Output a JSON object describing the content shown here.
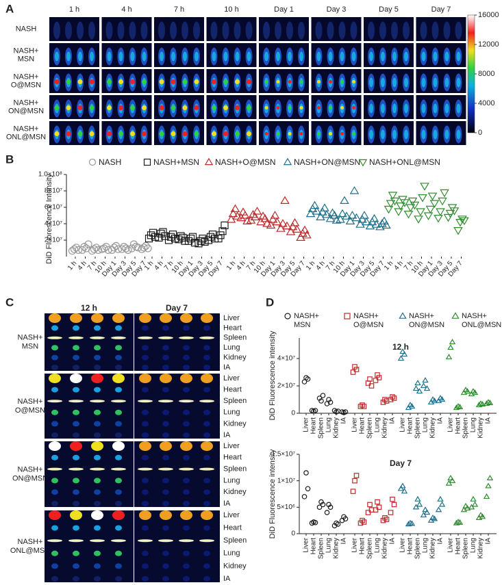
{
  "panel_a": {
    "label": "A",
    "columns": [
      "1 h",
      "4 h",
      "7 h",
      "10 h",
      "Day 1",
      "Day 3",
      "Day 5",
      "Day 7"
    ],
    "rows": [
      [
        "NASH"
      ],
      [
        "NASH+",
        "MSN"
      ],
      [
        "NASH+",
        "O@MSN"
      ],
      [
        "NASH+",
        "ON@MSN"
      ],
      [
        "NASH+",
        "ONL@MSN"
      ]
    ],
    "colorbar": {
      "lim": [
        0,
        16000
      ],
      "ticks": [
        0,
        4000,
        8000,
        12000,
        16000
      ]
    }
  },
  "panel_b": {
    "label": "B"
  },
  "panel_c": {
    "label": "C",
    "columns": [
      "12 h",
      "Day 7"
    ],
    "organs": [
      "Liver",
      "Heart",
      "Spleen",
      "Lung",
      "Kidney",
      "IA"
    ],
    "groups": [
      [
        "NASH+",
        "MSN"
      ],
      [
        "NASH+",
        "O@MSN"
      ],
      [
        "NASH+",
        "ON@MSN"
      ],
      [
        "NASH+",
        "ONL@MSN"
      ]
    ]
  },
  "panel_d": {
    "label": "D"
  },
  "chart_data": [
    {
      "type": "scatter",
      "ylabel": "DiD Fluorescence Intensity",
      "categories": [
        "1 h",
        "4 h",
        "7 h",
        "10 h",
        "Day 1",
        "Day 3",
        "Day 5",
        "Day 7"
      ],
      "ylim": [
        0,
        100000000.0
      ],
      "yticks": [
        {
          "value": 20000000.0,
          "label": "2×10⁷"
        },
        {
          "value": 40000000.0,
          "label": "4×10⁷"
        },
        {
          "value": 60000000.0,
          "label": "6×10⁷"
        },
        {
          "value": 80000000.0,
          "label": "8×10⁷"
        },
        {
          "value": 100000000.0,
          "label": "1.0×10⁸"
        }
      ],
      "series": [
        {
          "name": "NASH",
          "color": "#9a9a9a",
          "marker": "circle",
          "values": [
            [
              7000000.0,
              9000000.0,
              11000000.0,
              8000000.0
            ],
            [
              8000000.0,
              12000000.0,
              10000000.0,
              15000000.0
            ],
            [
              7000000.0,
              9000000.0,
              11000000.0,
              8000000.0
            ],
            [
              9000000.0,
              10000000.0,
              12000000.0,
              8000000.0
            ],
            [
              8000000.0,
              11000000.0,
              13000000.0,
              9000000.0
            ],
            [
              9000000.0,
              12000000.0,
              10000000.0,
              8000000.0
            ],
            [
              10000000.0,
              15000000.0,
              12000000.0,
              11000000.0
            ],
            [
              9000000.0,
              11000000.0,
              13000000.0,
              10000000.0
            ]
          ]
        },
        {
          "name": "NASH+MSN",
          "color": "#1a1a1a",
          "marker": "square",
          "values": [
            [
              22000000.0,
              26000000.0,
              29000000.0,
              24000000.0
            ],
            [
              23000000.0,
              28000000.0,
              30000000.0,
              25000000.0
            ],
            [
              20000000.0,
              24000000.0,
              27000000.0,
              22000000.0
            ],
            [
              21000000.0,
              25000000.0,
              23000000.0,
              19000000.0
            ],
            [
              19000000.0,
              22000000.0,
              24000000.0,
              17000000.0
            ],
            [
              16000000.0,
              19000000.0,
              22000000.0,
              18000000.0
            ],
            [
              20000000.0,
              24000000.0,
              27000000.0,
              22000000.0
            ],
            [
              22000000.0,
              26000000.0,
              31000000.0,
              38000000.0
            ]
          ]
        },
        {
          "name": "NASH+O@MSN",
          "color": "#c0282a",
          "marker": "triangle",
          "values": [
            [
              45000000.0,
              52000000.0,
              58000000.0,
              49000000.0
            ],
            [
              47000000.0,
              54000000.0,
              50000000.0,
              43000000.0
            ],
            [
              44000000.0,
              51000000.0,
              48000000.0,
              55000000.0
            ],
            [
              42000000.0,
              49000000.0,
              46000000.0,
              40000000.0
            ],
            [
              38000000.0,
              45000000.0,
              50000000.0,
              42000000.0
            ],
            [
              34000000.0,
              40000000.0,
              68000000.0,
              37000000.0
            ],
            [
              30000000.0,
              36000000.0,
              41000000.0,
              33000000.0
            ],
            [
              23000000.0,
              28000000.0,
              32000000.0,
              26000000.0
            ]
          ]
        },
        {
          "name": "NASH+ON@MSN",
          "color": "#1f6f8b",
          "marker": "triangle",
          "values": [
            [
              52000000.0,
              58000000.0,
              62000000.0,
              55000000.0
            ],
            [
              48000000.0,
              54000000.0,
              59000000.0,
              51000000.0
            ],
            [
              46000000.0,
              53000000.0,
              50000000.0,
              44000000.0
            ],
            [
              45000000.0,
              52000000.0,
              68000000.0,
              49000000.0
            ],
            [
              43000000.0,
              50000000.0,
              80000000.0,
              47000000.0
            ],
            [
              39000000.0,
              45000000.0,
              50000000.0,
              42000000.0
            ],
            [
              37000000.0,
              42000000.0,
              46000000.0,
              39000000.0
            ],
            [
              36000000.0,
              40000000.0,
              43000000.0,
              38000000.0
            ]
          ]
        },
        {
          "name": "NASH+ONL@MSN",
          "color": "#2e8b2e",
          "marker": "triangle-down",
          "values": [
            [
              58000000.0,
              65000000.0,
              75000000.0,
              68000000.0
            ],
            [
              55000000.0,
              62000000.0,
              70000000.0,
              66000000.0
            ],
            [
              52000000.0,
              60000000.0,
              68000000.0,
              63000000.0
            ],
            [
              46000000.0,
              55000000.0,
              72000000.0,
              86000000.0
            ],
            [
              50000000.0,
              58000000.0,
              74000000.0,
              65000000.0
            ],
            [
              47000000.0,
              55000000.0,
              68000000.0,
              78000000.0
            ],
            [
              48000000.0,
              53000000.0,
              60000000.0,
              56000000.0
            ],
            [
              32000000.0,
              42000000.0,
              46000000.0,
              44000000.0
            ]
          ]
        }
      ]
    },
    {
      "type": "scatter",
      "title": "12 h",
      "ylabel": "DiD Fluorescence intensity",
      "categories": [
        "Liver",
        "Heart",
        "Spleen",
        "Lung",
        "Kidney",
        "IA"
      ],
      "ylim": [
        0,
        55000000.0
      ],
      "yticks": [
        0,
        {
          "value": 20000000.0,
          "label": "2×10⁷"
        },
        {
          "value": 40000000.0,
          "label": "4×10⁷"
        }
      ],
      "series": [
        {
          "name": "NASH+ MSN",
          "color": "#1a1a1a",
          "marker": "circle",
          "values": [
            [
              23000000.0,
              26000000.0,
              25000000.0
            ],
            [
              2000000.0,
              1500000.0,
              2000000.0
            ],
            [
              11000000.0,
              9000000.0,
              13000000.0
            ],
            [
              7000000.0,
              10000000.0,
              8000000.0
            ],
            [
              2000000.0,
              1000000.0,
              1500000.0
            ],
            [
              1000000.0,
              500000.0,
              1000000.0
            ]
          ]
        },
        {
          "name": "NASH+ O@MSN",
          "color": "#c0282a",
          "marker": "square",
          "values": [
            [
              30000000.0,
              34000000.0,
              32000000.0
            ],
            [
              5000000.0,
              6000000.0,
              5000000.0
            ],
            [
              22000000.0,
              25000000.0,
              20000000.0
            ],
            [
              24000000.0,
              28000000.0,
              26000000.0
            ],
            [
              8000000.0,
              10000000.0,
              9000000.0
            ],
            [
              10000000.0,
              12000000.0,
              11000000.0
            ]
          ]
        },
        {
          "name": "NASH+ ON@MSN",
          "color": "#1f6f8b",
          "marker": "triangle",
          "values": [
            [
              40000000.0,
              45000000.0,
              43000000.0
            ],
            [
              4000000.0,
              6000000.0,
              5000000.0
            ],
            [
              18000000.0,
              22000000.0,
              16000000.0
            ],
            [
              20000000.0,
              24000000.0,
              18000000.0
            ],
            [
              8000000.0,
              10000000.0,
              9000000.0
            ],
            [
              9000000.0,
              11000000.0,
              10000000.0
            ]
          ]
        },
        {
          "name": "NASH+ ONL@MSN",
          "color": "#2e8b2e",
          "marker": "triangle",
          "values": [
            [
              41000000.0,
              48000000.0,
              52000000.0
            ],
            [
              4000000.0,
              5000000.0,
              4500000.0
            ],
            [
              15000000.0,
              17000000.0,
              16000000.0
            ],
            [
              14000000.0,
              16000000.0,
              15000000.0
            ],
            [
              6000000.0,
              7000000.0,
              6500000.0
            ],
            [
              7000000.0,
              8000000.0,
              7500000.0
            ]
          ]
        }
      ]
    },
    {
      "type": "scatter",
      "title": "Day 7",
      "ylabel": "DiD Fluorescence intensity",
      "categories": [
        "Liver",
        "Heart",
        "Spleen",
        "Lung",
        "Kidney",
        "IA"
      ],
      "ylim": [
        0,
        15000000.0
      ],
      "yticks": [
        0,
        {
          "value": 5000000.0,
          "label": "5×10⁶"
        },
        {
          "value": 10000000.0,
          "label": "1×10⁷"
        },
        {
          "value": 15000000.0,
          "label": "1.5×10⁷"
        }
      ],
      "series": [
        {
          "name": "NASH+ MSN",
          "color": "#1a1a1a",
          "marker": "circle",
          "values": [
            [
              7000000.0,
              11500000.0,
              8500000.0
            ],
            [
              2000000.0,
              2200000.0,
              2100000.0
            ],
            [
              5000000.0,
              6000000.0,
              5500000.0
            ],
            [
              4000000.0,
              5500000.0,
              5000000.0
            ],
            [
              1500000.0,
              2000000.0,
              1800000.0
            ],
            [
              2500000.0,
              3200000.0,
              2800000.0
            ]
          ]
        },
        {
          "name": "NASH+ O@MSN",
          "color": "#c0282a",
          "marker": "square",
          "values": [
            [
              8000000.0,
              10000000.0,
              11000000.0
            ],
            [
              2000000.0,
              2500000.0,
              2200000.0
            ],
            [
              4000000.0,
              5500000.0,
              4500000.0
            ],
            [
              4500000.0,
              6000000.0,
              5000000.0
            ],
            [
              2500000.0,
              3000000.0,
              2700000.0
            ],
            [
              4000000.0,
              6500000.0,
              5500000.0
            ]
          ]
        },
        {
          "name": "NASH+ ON@MSN",
          "color": "#1f6f8b",
          "marker": "triangle",
          "values": [
            [
              8500000.0,
              9000000.0,
              8000000.0
            ],
            [
              1800000.0,
              2000000.0,
              1900000.0
            ],
            [
              5000000.0,
              6500000.0,
              5500000.0
            ],
            [
              3500000.0,
              4500000.0,
              4000000.0
            ],
            [
              2500000.0,
              3000000.0,
              2800000.0
            ],
            [
              4500000.0,
              6500000.0,
              5500000.0
            ]
          ]
        },
        {
          "name": "NASH+ ONL@MSN",
          "color": "#2e8b2e",
          "marker": "triangle",
          "values": [
            [
              9500000.0,
              10500000.0,
              10000000.0
            ],
            [
              2000000.0,
              2200000.0,
              2100000.0
            ],
            [
              4500000.0,
              5200000.0,
              4800000.0
            ],
            [
              5000000.0,
              6500000.0,
              5500000.0
            ],
            [
              3000000.0,
              3500000.0,
              3200000.0
            ],
            [
              7000000.0,
              9000000.0,
              10500000.0
            ]
          ]
        }
      ]
    }
  ]
}
